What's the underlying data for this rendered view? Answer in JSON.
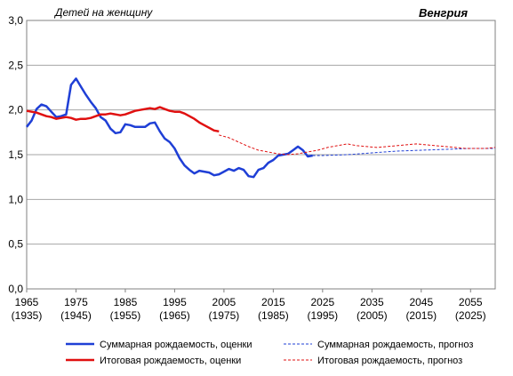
{
  "chart_data": {
    "type": "line",
    "title": "Венгрия",
    "ylabel": "Детей на женщину",
    "xlim": [
      1965,
      2060
    ],
    "ylim": [
      0,
      3
    ],
    "y_ticks": [
      "0,0",
      "0,5",
      "1,0",
      "1,5",
      "2,0",
      "2,5",
      "3,0"
    ],
    "y_tick_values": [
      0,
      0.5,
      1,
      1.5,
      2,
      2.5,
      3
    ],
    "x_ticks": [
      {
        "value": 1965,
        "top": "1965",
        "bottom": "(1935)"
      },
      {
        "value": 1975,
        "top": "1975",
        "bottom": "(1945)"
      },
      {
        "value": 1985,
        "top": "1985",
        "bottom": "(1955)"
      },
      {
        "value": 1995,
        "top": "1995",
        "bottom": "(1965)"
      },
      {
        "value": 2005,
        "top": "2005",
        "bottom": "(1975)"
      },
      {
        "value": 2015,
        "top": "2015",
        "bottom": "(1985)"
      },
      {
        "value": 2025,
        "top": "2025",
        "bottom": "(1995)"
      },
      {
        "value": 2035,
        "top": "2035",
        "bottom": "(2005)"
      },
      {
        "value": 2045,
        "top": "2045",
        "bottom": "(2015)"
      },
      {
        "value": 2055,
        "top": "2055",
        "bottom": "(2025)"
      }
    ],
    "grid": true,
    "legend_position": "bottom",
    "series": [
      {
        "name": "Суммарная рождаемость, оценки",
        "color": "#1f3fd6",
        "style": "solid",
        "x": [
          1965,
          1966,
          1967,
          1968,
          1969,
          1970,
          1971,
          1972,
          1973,
          1974,
          1975,
          1976,
          1977,
          1978,
          1979,
          1980,
          1981,
          1982,
          1983,
          1984,
          1985,
          1986,
          1987,
          1988,
          1989,
          1990,
          1991,
          1992,
          1993,
          1994,
          1995,
          1996,
          1997,
          1998,
          1999,
          2000,
          2001,
          2002,
          2003,
          2004,
          2005,
          2006,
          2007,
          2008,
          2009,
          2010,
          2011,
          2012,
          2013,
          2014,
          2015,
          2016,
          2017,
          2018,
          2019,
          2020,
          2021,
          2022,
          2023
        ],
        "y": [
          1.81,
          1.88,
          2.01,
          2.06,
          2.04,
          1.98,
          1.92,
          1.93,
          1.95,
          2.28,
          2.35,
          2.26,
          2.17,
          2.09,
          2.02,
          1.92,
          1.88,
          1.79,
          1.74,
          1.75,
          1.84,
          1.83,
          1.81,
          1.81,
          1.81,
          1.85,
          1.86,
          1.76,
          1.68,
          1.64,
          1.57,
          1.46,
          1.38,
          1.33,
          1.29,
          1.32,
          1.31,
          1.3,
          1.27,
          1.28,
          1.31,
          1.34,
          1.32,
          1.35,
          1.33,
          1.26,
          1.25,
          1.33,
          1.35,
          1.41,
          1.44,
          1.49,
          1.5,
          1.51,
          1.55,
          1.59,
          1.55,
          1.48,
          1.49
        ]
      },
      {
        "name": "Итоговая рождаемость, оценки",
        "color": "#e01010",
        "style": "solid",
        "x": [
          1965,
          1966,
          1967,
          1968,
          1969,
          1970,
          1971,
          1972,
          1973,
          1974,
          1975,
          1976,
          1977,
          1978,
          1979,
          1980,
          1981,
          1982,
          1983,
          1984,
          1985,
          1986,
          1987,
          1988,
          1989,
          1990,
          1991,
          1992,
          1993,
          1994,
          1995,
          1996,
          1997,
          1998,
          1999,
          2000,
          2001,
          2002,
          2003,
          2004
        ],
        "y": [
          1.99,
          1.98,
          1.97,
          1.95,
          1.93,
          1.92,
          1.9,
          1.91,
          1.92,
          1.91,
          1.89,
          1.9,
          1.9,
          1.91,
          1.93,
          1.95,
          1.95,
          1.96,
          1.95,
          1.94,
          1.95,
          1.97,
          1.99,
          2.0,
          2.01,
          2.02,
          2.01,
          2.03,
          2.01,
          1.99,
          1.98,
          1.98,
          1.96,
          1.93,
          1.9,
          1.86,
          1.83,
          1.8,
          1.77,
          1.76
        ]
      },
      {
        "name": "Суммарная рождаемость, прогноз",
        "color": "#1f3fd6",
        "style": "dashed",
        "x": [
          2023,
          2025,
          2030,
          2035,
          2040,
          2045,
          2050,
          2055,
          2060
        ],
        "y": [
          1.49,
          1.49,
          1.5,
          1.52,
          1.54,
          1.55,
          1.56,
          1.57,
          1.57
        ]
      },
      {
        "name": "Итоговая рождаемость, прогноз",
        "color": "#e01010",
        "style": "dashed",
        "x": [
          2004,
          2006,
          2008,
          2010,
          2012,
          2014,
          2016,
          2018,
          2020,
          2022,
          2024,
          2026,
          2028,
          2030,
          2032,
          2034,
          2036,
          2038,
          2040,
          2042,
          2044,
          2046,
          2048,
          2050,
          2052,
          2054,
          2056,
          2058,
          2060
        ],
        "y": [
          1.72,
          1.69,
          1.64,
          1.59,
          1.55,
          1.53,
          1.51,
          1.5,
          1.51,
          1.53,
          1.55,
          1.58,
          1.6,
          1.62,
          1.6,
          1.59,
          1.58,
          1.59,
          1.6,
          1.61,
          1.62,
          1.61,
          1.6,
          1.59,
          1.58,
          1.57,
          1.57,
          1.57,
          1.58
        ]
      }
    ]
  }
}
